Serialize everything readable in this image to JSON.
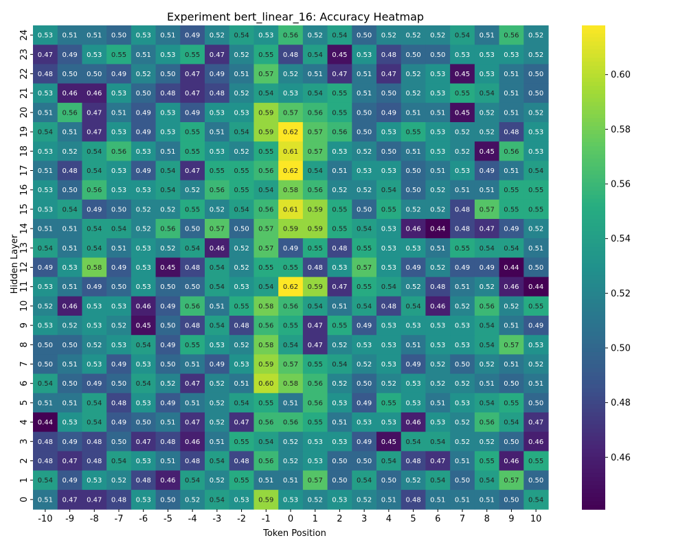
{
  "chart_data": {
    "type": "heatmap",
    "title": "Experiment bert_linear_16: Accuracy Heatmap",
    "xlabel": "Token Position",
    "ylabel": "Hidden Layer",
    "x": [
      "-10",
      "-9",
      "-8",
      "-7",
      "-6",
      "-5",
      "-4",
      "-3",
      "-2",
      "-1",
      "0",
      "1",
      "2",
      "3",
      "4",
      "5",
      "6",
      "7",
      "8",
      "9",
      "10"
    ],
    "y": [
      "24",
      "23",
      "22",
      "21",
      "20",
      "19",
      "18",
      "17",
      "16",
      "15",
      "14",
      "13",
      "12",
      "11",
      "10",
      "9",
      "8",
      "7",
      "6",
      "5",
      "4",
      "3",
      "2",
      "1",
      "0"
    ],
    "values": [
      [
        0.53,
        0.51,
        0.51,
        0.5,
        0.53,
        0.51,
        0.49,
        0.52,
        0.54,
        0.53,
        0.56,
        0.52,
        0.54,
        0.5,
        0.52,
        0.52,
        0.52,
        0.54,
        0.51,
        0.56,
        0.52
      ],
      [
        0.47,
        0.49,
        0.53,
        0.55,
        0.51,
        0.53,
        0.55,
        0.47,
        0.52,
        0.55,
        0.48,
        0.54,
        0.45,
        0.53,
        0.48,
        0.5,
        0.5,
        0.53,
        0.53,
        0.53,
        0.52
      ],
      [
        0.48,
        0.5,
        0.5,
        0.49,
        0.52,
        0.5,
        0.47,
        0.49,
        0.51,
        0.57,
        0.52,
        0.51,
        0.47,
        0.51,
        0.47,
        0.52,
        0.53,
        0.45,
        0.53,
        0.51,
        0.5
      ],
      [
        0.53,
        0.46,
        0.46,
        0.53,
        0.5,
        0.48,
        0.47,
        0.48,
        0.52,
        0.54,
        0.53,
        0.54,
        0.55,
        0.51,
        0.5,
        0.52,
        0.53,
        0.55,
        0.54,
        0.51,
        0.5
      ],
      [
        0.51,
        0.56,
        0.47,
        0.51,
        0.49,
        0.53,
        0.49,
        0.53,
        0.53,
        0.59,
        0.57,
        0.56,
        0.55,
        0.5,
        0.49,
        0.51,
        0.51,
        0.45,
        0.52,
        0.51,
        0.52
      ],
      [
        0.54,
        0.51,
        0.47,
        0.53,
        0.49,
        0.53,
        0.55,
        0.51,
        0.54,
        0.59,
        0.62,
        0.57,
        0.56,
        0.5,
        0.53,
        0.55,
        0.53,
        0.52,
        0.52,
        0.48,
        0.53
      ],
      [
        0.53,
        0.52,
        0.54,
        0.56,
        0.53,
        0.51,
        0.55,
        0.53,
        0.52,
        0.55,
        0.61,
        0.57,
        0.53,
        0.52,
        0.5,
        0.51,
        0.53,
        0.52,
        0.45,
        0.56,
        0.53
      ],
      [
        0.51,
        0.48,
        0.54,
        0.53,
        0.49,
        0.54,
        0.47,
        0.55,
        0.55,
        0.56,
        0.62,
        0.54,
        0.51,
        0.53,
        0.53,
        0.5,
        0.51,
        0.53,
        0.49,
        0.51,
        0.54
      ],
      [
        0.53,
        0.5,
        0.56,
        0.53,
        0.53,
        0.54,
        0.52,
        0.56,
        0.55,
        0.54,
        0.58,
        0.56,
        0.52,
        0.52,
        0.54,
        0.5,
        0.52,
        0.51,
        0.51,
        0.55,
        0.55
      ],
      [
        0.53,
        0.54,
        0.49,
        0.5,
        0.52,
        0.52,
        0.55,
        0.52,
        0.54,
        0.56,
        0.61,
        0.59,
        0.55,
        0.5,
        0.55,
        0.52,
        0.52,
        0.48,
        0.57,
        0.55,
        0.55
      ],
      [
        0.51,
        0.51,
        0.54,
        0.54,
        0.52,
        0.56,
        0.5,
        0.57,
        0.5,
        0.57,
        0.59,
        0.59,
        0.55,
        0.54,
        0.53,
        0.46,
        0.44,
        0.48,
        0.47,
        0.49,
        0.52
      ],
      [
        0.54,
        0.51,
        0.54,
        0.51,
        0.53,
        0.52,
        0.54,
        0.46,
        0.52,
        0.57,
        0.49,
        0.55,
        0.48,
        0.55,
        0.53,
        0.53,
        0.51,
        0.55,
        0.54,
        0.54,
        0.51
      ],
      [
        0.49,
        0.53,
        0.58,
        0.49,
        0.53,
        0.45,
        0.48,
        0.54,
        0.52,
        0.55,
        0.55,
        0.48,
        0.53,
        0.57,
        0.53,
        0.49,
        0.52,
        0.49,
        0.49,
        0.44,
        0.5
      ],
      [
        0.53,
        0.51,
        0.49,
        0.5,
        0.53,
        0.5,
        0.5,
        0.54,
        0.53,
        0.54,
        0.62,
        0.59,
        0.47,
        0.55,
        0.54,
        0.52,
        0.48,
        0.51,
        0.52,
        0.46,
        0.44
      ],
      [
        0.52,
        0.46,
        0.53,
        0.53,
        0.46,
        0.49,
        0.56,
        0.51,
        0.55,
        0.58,
        0.56,
        0.54,
        0.51,
        0.54,
        0.48,
        0.54,
        0.46,
        0.52,
        0.56,
        0.52,
        0.55
      ],
      [
        0.53,
        0.52,
        0.53,
        0.52,
        0.45,
        0.5,
        0.48,
        0.54,
        0.48,
        0.56,
        0.55,
        0.47,
        0.55,
        0.49,
        0.53,
        0.53,
        0.53,
        0.53,
        0.54,
        0.51,
        0.49
      ],
      [
        0.5,
        0.5,
        0.52,
        0.53,
        0.54,
        0.49,
        0.55,
        0.53,
        0.52,
        0.58,
        0.54,
        0.47,
        0.52,
        0.53,
        0.53,
        0.51,
        0.53,
        0.53,
        0.54,
        0.57,
        0.53
      ],
      [
        0.5,
        0.51,
        0.53,
        0.49,
        0.53,
        0.5,
        0.51,
        0.49,
        0.53,
        0.59,
        0.57,
        0.55,
        0.54,
        0.52,
        0.53,
        0.49,
        0.52,
        0.5,
        0.52,
        0.51,
        0.52
      ],
      [
        0.54,
        0.5,
        0.49,
        0.5,
        0.54,
        0.52,
        0.47,
        0.52,
        0.51,
        0.6,
        0.58,
        0.56,
        0.52,
        0.5,
        0.52,
        0.53,
        0.52,
        0.52,
        0.51,
        0.5,
        0.51
      ],
      [
        0.51,
        0.51,
        0.54,
        0.48,
        0.53,
        0.49,
        0.51,
        0.52,
        0.54,
        0.55,
        0.51,
        0.56,
        0.53,
        0.49,
        0.55,
        0.53,
        0.51,
        0.53,
        0.54,
        0.55,
        0.5
      ],
      [
        0.44,
        0.53,
        0.54,
        0.49,
        0.5,
        0.51,
        0.47,
        0.52,
        0.47,
        0.56,
        0.56,
        0.55,
        0.51,
        0.53,
        0.53,
        0.46,
        0.53,
        0.52,
        0.56,
        0.54,
        0.47
      ],
      [
        0.48,
        0.49,
        0.48,
        0.5,
        0.47,
        0.48,
        0.46,
        0.51,
        0.55,
        0.54,
        0.52,
        0.53,
        0.53,
        0.49,
        0.45,
        0.54,
        0.54,
        0.52,
        0.52,
        0.5,
        0.46
      ],
      [
        0.48,
        0.47,
        0.48,
        0.54,
        0.53,
        0.51,
        0.48,
        0.54,
        0.48,
        0.56,
        0.52,
        0.53,
        0.5,
        0.5,
        0.54,
        0.48,
        0.47,
        0.51,
        0.55,
        0.46,
        0.55
      ],
      [
        0.54,
        0.49,
        0.53,
        0.52,
        0.48,
        0.46,
        0.54,
        0.52,
        0.55,
        0.51,
        0.51,
        0.57,
        0.5,
        0.54,
        0.5,
        0.52,
        0.54,
        0.5,
        0.54,
        0.57,
        0.5
      ],
      [
        0.51,
        0.47,
        0.47,
        0.48,
        0.53,
        0.5,
        0.52,
        0.54,
        0.53,
        0.59,
        0.53,
        0.52,
        0.53,
        0.52,
        0.51,
        0.48,
        0.51,
        0.51,
        0.51,
        0.5,
        0.54
      ]
    ],
    "vmin": 0.441,
    "vmax": 0.618,
    "colormap": "viridis",
    "colorbar_ticks": [
      "0.46",
      "0.48",
      "0.50",
      "0.52",
      "0.54",
      "0.56",
      "0.58",
      "0.60"
    ],
    "grid": false
  }
}
